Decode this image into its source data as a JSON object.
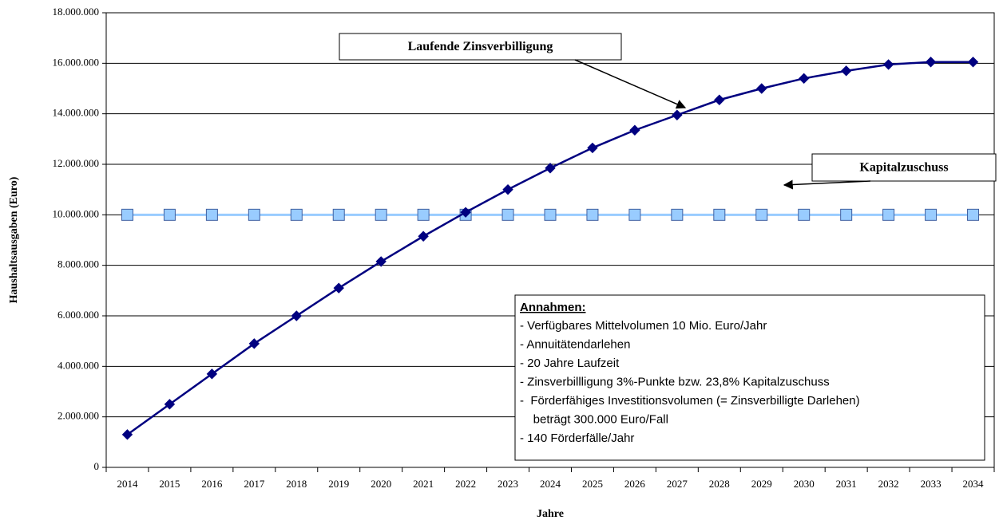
{
  "chart_data": {
    "type": "line",
    "x_label": "Jahre",
    "y_label": "Haushaltsausgaben (Euro)",
    "categories": [
      "2014",
      "2015",
      "2016",
      "2017",
      "2018",
      "2019",
      "2020",
      "2021",
      "2022",
      "2023",
      "2024",
      "2025",
      "2026",
      "2027",
      "2028",
      "2029",
      "2030",
      "2031",
      "2032",
      "2033",
      "2034"
    ],
    "series": [
      {
        "name": "Laufende Zinsverbilligung",
        "color": "#000080",
        "marker": "diamond",
        "values": [
          1300000,
          2500000,
          3700000,
          4900000,
          6000000,
          7100000,
          8150000,
          9150000,
          10100000,
          11000000,
          11850000,
          12650000,
          13350000,
          13950000,
          14550000,
          15000000,
          15400000,
          15700000,
          15950000,
          16050000,
          16050000
        ]
      },
      {
        "name": "Kapitalzuschuss",
        "color": "#99ccff",
        "marker": "square",
        "values": [
          10000000,
          10000000,
          10000000,
          10000000,
          10000000,
          10000000,
          10000000,
          10000000,
          10000000,
          10000000,
          10000000,
          10000000,
          10000000,
          10000000,
          10000000,
          10000000,
          10000000,
          10000000,
          10000000,
          10000000,
          10000000
        ]
      }
    ],
    "ylim": [
      0,
      18000000
    ],
    "yticks": [
      0,
      {
        "value": 2000000,
        "label": "2.000.000"
      },
      {
        "value": 4000000,
        "label": "4.000.000"
      },
      {
        "value": 6000000,
        "label": "6.000.000"
      },
      {
        "value": 8000000,
        "label": "8.000.000"
      },
      {
        "value": 10000000,
        "label": "10.000.000"
      },
      {
        "value": 12000000,
        "label": "12.000.000"
      },
      {
        "value": 14000000,
        "label": "14.000.000"
      },
      {
        "value": 16000000,
        "label": "16.000.000"
      },
      {
        "value": 18000000,
        "label": "18.000.000"
      }
    ],
    "grid": true,
    "notes": {
      "title": "Annahmen:",
      "lines": [
        "- Verfügbares Mittelvolumen 10 Mio. Euro/Jahr",
        "- Annuitätendarlehen",
        "- 20 Jahre Laufzeit",
        "- Zinsverbillligung 3%-Punkte bzw. 23,8% Kapitalzuschuss",
        "-  Förderfähiges Investitionsvolumen (= Zinsverbilligte Darlehen)",
        "    beträgt 300.000 Euro/Fall",
        "- 140 Förderfälle/Jahr"
      ]
    }
  }
}
